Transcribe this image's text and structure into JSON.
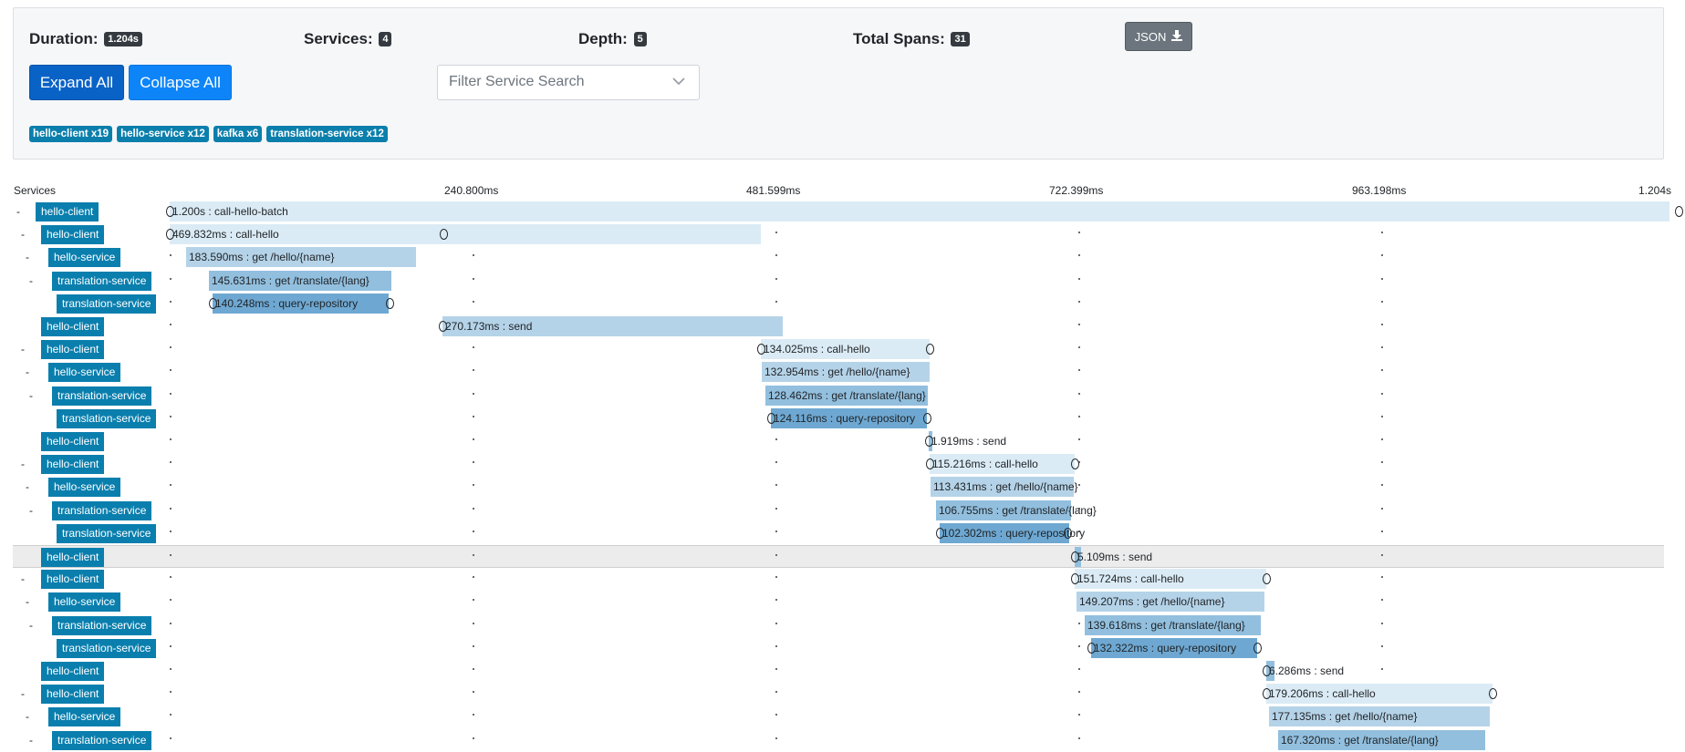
{
  "summary": {
    "duration_label": "Duration:",
    "duration_value": "1.204s",
    "services_label": "Services:",
    "services_value": "4",
    "depth_label": "Depth:",
    "depth_value": "5",
    "total_spans_label": "Total Spans:",
    "total_spans_value": "31",
    "json_button": "JSON",
    "expand_all": "Expand All",
    "collapse_all": "Collapse All",
    "filter_placeholder": "Filter Service Search",
    "service_counts": [
      "hello-client x19",
      "hello-service x12",
      "kafka x6",
      "translation-service x12"
    ]
  },
  "timeline": {
    "services_header": "Services",
    "time_ticks": [
      "240.800ms",
      "481.599ms",
      "722.399ms",
      "963.198ms",
      "1.204s"
    ],
    "rows": [
      {
        "toggle": "-",
        "service": "hello-client",
        "label": "1.200s : call-hello-batch"
      },
      {
        "toggle": "-",
        "service": "hello-client",
        "label": "469.832ms : call-hello"
      },
      {
        "toggle": "-",
        "service": "hello-service",
        "label": "183.590ms : get /hello/{name}"
      },
      {
        "toggle": "-",
        "service": "translation-service",
        "label": "145.631ms : get /translate/{lang}"
      },
      {
        "toggle": "",
        "service": "translation-service",
        "label": "140.248ms : query-repository"
      },
      {
        "toggle": "",
        "service": "hello-client",
        "label": "270.173ms : send"
      },
      {
        "toggle": "-",
        "service": "hello-client",
        "label": "134.025ms : call-hello"
      },
      {
        "toggle": "-",
        "service": "hello-service",
        "label": "132.954ms : get /hello/{name}"
      },
      {
        "toggle": "-",
        "service": "translation-service",
        "label": "128.462ms : get /translate/{lang}"
      },
      {
        "toggle": "",
        "service": "translation-service",
        "label": "124.116ms : query-repository"
      },
      {
        "toggle": "",
        "service": "hello-client",
        "label": "1.919ms : send"
      },
      {
        "toggle": "-",
        "service": "hello-client",
        "label": "115.216ms : call-hello"
      },
      {
        "toggle": "-",
        "service": "hello-service",
        "label": "113.431ms : get /hello/{name}"
      },
      {
        "toggle": "-",
        "service": "translation-service",
        "label": "106.755ms : get /translate/{lang}"
      },
      {
        "toggle": "",
        "service": "translation-service",
        "label": "102.302ms : query-repository"
      },
      {
        "toggle": "",
        "service": "hello-client",
        "label": "5.109ms : send"
      },
      {
        "toggle": "-",
        "service": "hello-client",
        "label": "151.724ms : call-hello"
      },
      {
        "toggle": "-",
        "service": "hello-service",
        "label": "149.207ms : get /hello/{name}"
      },
      {
        "toggle": "-",
        "service": "translation-service",
        "label": "139.618ms : get /translate/{lang}"
      },
      {
        "toggle": "",
        "service": "translation-service",
        "label": "132.322ms : query-repository"
      },
      {
        "toggle": "",
        "service": "hello-client",
        "label": "6.286ms : send"
      },
      {
        "toggle": "-",
        "service": "hello-client",
        "label": "179.206ms : call-hello"
      },
      {
        "toggle": "-",
        "service": "hello-service",
        "label": "177.135ms : get /hello/{name}"
      },
      {
        "toggle": "-",
        "service": "translation-service",
        "label": "167.320ms : get /translate/{lang}"
      }
    ]
  }
}
